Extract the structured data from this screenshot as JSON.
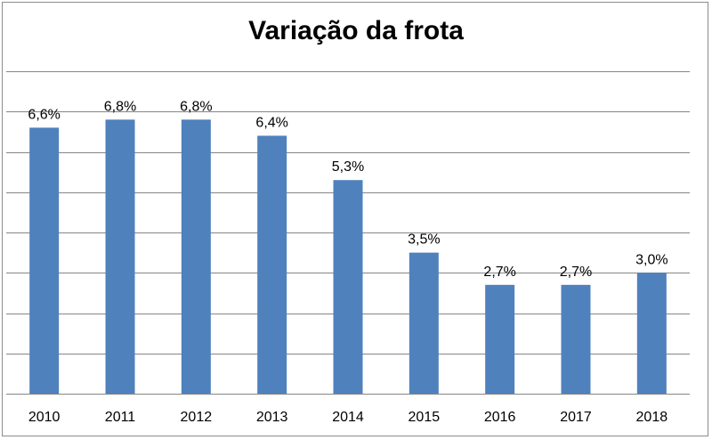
{
  "chart_data": {
    "type": "bar",
    "title": "Variação da frota",
    "xlabel": "",
    "ylabel": "",
    "categories": [
      "2010",
      "2011",
      "2012",
      "2013",
      "2014",
      "2015",
      "2016",
      "2017",
      "2018"
    ],
    "values": [
      6.6,
      6.8,
      6.8,
      6.4,
      5.3,
      3.5,
      2.7,
      2.7,
      3.0
    ],
    "data_labels": [
      "6,6%",
      "6,8%",
      "6,8%",
      "6,4%",
      "5,3%",
      "3,5%",
      "2,7%",
      "2,7%",
      "3,0%"
    ],
    "ylim": [
      0,
      8
    ],
    "y_axis_labels_shown": false,
    "grid": true,
    "legend": "none",
    "bar_color": "#4f81bd",
    "gridline_color": "#868686"
  }
}
